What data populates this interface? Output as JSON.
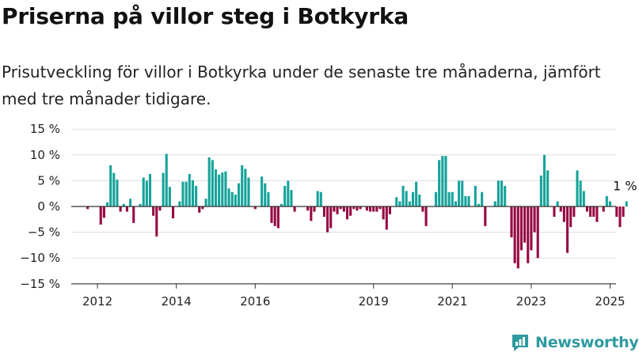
{
  "header": {
    "title": "Priserna på villor steg i Botkyrka",
    "subtitle": "Prisutveckling för villor i Botkyrka under de senaste tre månaderna, jämfört med tre månader tidigare."
  },
  "brand": {
    "name": "Newsworthy",
    "logo_icon": "newsworthy-logo-icon",
    "color": "#2f9aa0"
  },
  "colors": {
    "positive": "#16a39b",
    "negative": "#960a43",
    "grid": "#dddddd",
    "axis": "#333333"
  },
  "chart_data": {
    "type": "bar",
    "title": "Priserna på villor steg i Botkyrka",
    "subtitle": "Prisutveckling för villor i Botkyrka under de senaste tre månaderna, jämfört med tre månader tidigare.",
    "xlabel": "",
    "ylabel": "",
    "x_unit": "month index (0 = first month, Jan 2012 at index 4)",
    "ylim": [
      -15,
      15
    ],
    "yticks": [
      15,
      10,
      5,
      0,
      -5,
      -10,
      -15
    ],
    "ytick_labels": [
      "15 %",
      "10 %",
      "5 %",
      "0 %",
      "−5 %",
      "−10 %",
      "−15 %"
    ],
    "xtick_labels": [
      "2012",
      "2014",
      "2016",
      "2019",
      "2021",
      "2023",
      "2025"
    ],
    "xtick_positions": [
      4,
      28,
      52,
      88,
      112,
      136,
      160
    ],
    "grid": true,
    "annotation": "1 %",
    "values": [
      0.0,
      -0.5,
      0.0,
      0.0,
      0.0,
      -3.5,
      -2.2,
      0.8,
      8.0,
      6.5,
      5.2,
      -1.0,
      0.5,
      -1.0,
      1.5,
      -3.2,
      0.0,
      0.5,
      5.6,
      5.0,
      6.3,
      -1.8,
      -5.8,
      -0.8,
      6.5,
      10.2,
      3.8,
      -2.3,
      0.0,
      1.0,
      4.8,
      4.8,
      6.3,
      5.1,
      4.0,
      -1.2,
      -0.5,
      1.5,
      9.5,
      9.0,
      7.2,
      6.2,
      6.6,
      6.8,
      3.5,
      2.8,
      2.3,
      4.5,
      8.0,
      7.3,
      5.6,
      0.0,
      -0.5,
      0.0,
      5.8,
      4.5,
      2.8,
      -3.2,
      -3.8,
      -4.2,
      0.5,
      4.0,
      5.0,
      3.2,
      -1.0,
      0.0,
      0.0,
      0.0,
      -0.8,
      -2.8,
      -1.0,
      3.0,
      2.8,
      -2.0,
      -5.0,
      -4.2,
      -1.0,
      -1.5,
      -0.5,
      -1.0,
      -2.5,
      -1.8,
      -0.5,
      -0.8,
      -0.5,
      0.0,
      -0.8,
      -1.0,
      -1.0,
      -1.0,
      -0.5,
      -2.5,
      -4.5,
      -1.5,
      0.0,
      1.8,
      1.0,
      4.0,
      3.0,
      1.0,
      2.8,
      4.8,
      2.3,
      -1.0,
      -3.8,
      0.0,
      0.0,
      2.8,
      9.0,
      9.8,
      9.8,
      2.8,
      2.8,
      1.0,
      5.0,
      5.0,
      2.0,
      2.0,
      0.0,
      4.0,
      0.5,
      2.8,
      -3.8,
      0.0,
      0.0,
      1.0,
      5.0,
      5.0,
      4.0,
      0.0,
      -6.0,
      -11.0,
      -12.0,
      -8.5,
      -7.0,
      -11.0,
      -8.5,
      -5.0,
      -10.0,
      6.0,
      10.0,
      7.0,
      0.0,
      -2.0,
      1.0,
      -1.0,
      -3.0,
      -9.0,
      -4.0,
      -2.0,
      7.0,
      5.0,
      3.0,
      -1.0,
      -2.0,
      -2.0,
      -3.0,
      0.0,
      -1.0,
      2.0,
      1.0,
      0.0,
      -2.0,
      -4.0,
      -2.0,
      1.0
    ]
  }
}
